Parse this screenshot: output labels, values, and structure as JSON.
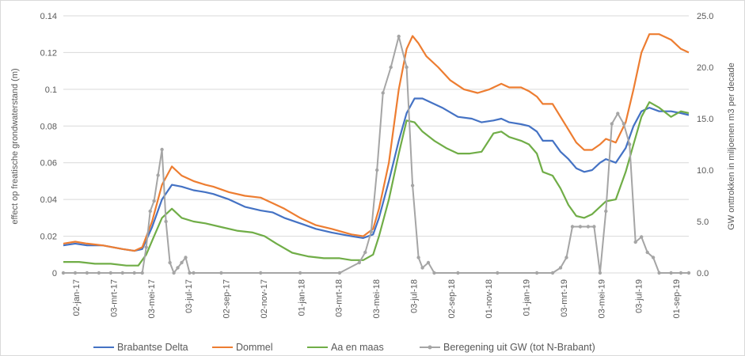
{
  "chart_data": {
    "type": "line",
    "x_tick_labels": [
      "02-jan-17",
      "03-mrt-17",
      "03-mei-17",
      "03-jul-17",
      "02-sep-17",
      "02-nov-17",
      "01-jan-18",
      "03-mrt-18",
      "03-mei-18",
      "03-jul-18",
      "02-sep-18",
      "01-nov-18",
      "01-jan-19",
      "03-mrt-19",
      "03-mei-19",
      "03-jul-19",
      "01-sep-19"
    ],
    "y_left": {
      "label": "effect op freatische grondwaterstand (m)",
      "range": [
        0,
        0.14
      ],
      "ticks": [
        "0",
        "0.02",
        "0.04",
        "0.06",
        "0.08",
        "0.1",
        "0.12",
        "0.14"
      ]
    },
    "y_right": {
      "label": "GW onttrokken in miljoenen m3 per decade",
      "range": [
        0,
        25
      ],
      "ticks": [
        "0.0",
        "5.0",
        "10.0",
        "15.0",
        "20.0",
        "25.0"
      ]
    },
    "grid": "horizontal",
    "legend_position": "bottom",
    "series": [
      {
        "name": "Brabantse Delta",
        "color": "#4472c4",
        "axis": "left",
        "points": [
          [
            0,
            0.015
          ],
          [
            6,
            0.016
          ],
          [
            12,
            0.015
          ],
          [
            20,
            0.015
          ],
          [
            30,
            0.013
          ],
          [
            36,
            0.012
          ],
          [
            40,
            0.013
          ],
          [
            45,
            0.025
          ],
          [
            50,
            0.04
          ],
          [
            55,
            0.048
          ],
          [
            60,
            0.047
          ],
          [
            66,
            0.045
          ],
          [
            72,
            0.044
          ],
          [
            76,
            0.043
          ],
          [
            84,
            0.04
          ],
          [
            92,
            0.036
          ],
          [
            100,
            0.034
          ],
          [
            106,
            0.033
          ],
          [
            112,
            0.03
          ],
          [
            120,
            0.027
          ],
          [
            128,
            0.024
          ],
          [
            136,
            0.022
          ],
          [
            146,
            0.02
          ],
          [
            152,
            0.019
          ],
          [
            157,
            0.021
          ],
          [
            160,
            0.03
          ],
          [
            165,
            0.05
          ],
          [
            170,
            0.072
          ],
          [
            174,
            0.087
          ],
          [
            178,
            0.095
          ],
          [
            182,
            0.095
          ],
          [
            186,
            0.093
          ],
          [
            192,
            0.09
          ],
          [
            200,
            0.085
          ],
          [
            207,
            0.084
          ],
          [
            212,
            0.082
          ],
          [
            218,
            0.083
          ],
          [
            222,
            0.084
          ],
          [
            226,
            0.082
          ],
          [
            232,
            0.081
          ],
          [
            236,
            0.08
          ],
          [
            240,
            0.077
          ],
          [
            243,
            0.072
          ],
          [
            248,
            0.072
          ],
          [
            252,
            0.066
          ],
          [
            256,
            0.062
          ],
          [
            260,
            0.057
          ],
          [
            264,
            0.055
          ],
          [
            268,
            0.056
          ],
          [
            272,
            0.06
          ],
          [
            275,
            0.062
          ],
          [
            280,
            0.06
          ],
          [
            285,
            0.068
          ],
          [
            289,
            0.08
          ],
          [
            293,
            0.088
          ],
          [
            297,
            0.09
          ],
          [
            302,
            0.088
          ],
          [
            308,
            0.088
          ],
          [
            313,
            0.087
          ],
          [
            317,
            0.086
          ]
        ]
      },
      {
        "name": "Dommel",
        "color": "#ed7d31",
        "axis": "left",
        "points": [
          [
            0,
            0.016
          ],
          [
            6,
            0.017
          ],
          [
            12,
            0.016
          ],
          [
            20,
            0.015
          ],
          [
            30,
            0.013
          ],
          [
            36,
            0.012
          ],
          [
            40,
            0.014
          ],
          [
            45,
            0.028
          ],
          [
            50,
            0.048
          ],
          [
            55,
            0.058
          ],
          [
            60,
            0.053
          ],
          [
            66,
            0.05
          ],
          [
            72,
            0.048
          ],
          [
            76,
            0.047
          ],
          [
            84,
            0.044
          ],
          [
            92,
            0.042
          ],
          [
            100,
            0.041
          ],
          [
            106,
            0.038
          ],
          [
            112,
            0.035
          ],
          [
            120,
            0.03
          ],
          [
            128,
            0.026
          ],
          [
            136,
            0.024
          ],
          [
            146,
            0.021
          ],
          [
            152,
            0.02
          ],
          [
            157,
            0.024
          ],
          [
            160,
            0.035
          ],
          [
            165,
            0.06
          ],
          [
            170,
            0.1
          ],
          [
            174,
            0.122
          ],
          [
            177,
            0.129
          ],
          [
            180,
            0.125
          ],
          [
            184,
            0.118
          ],
          [
            190,
            0.112
          ],
          [
            196,
            0.105
          ],
          [
            203,
            0.1
          ],
          [
            210,
            0.098
          ],
          [
            216,
            0.1
          ],
          [
            222,
            0.103
          ],
          [
            226,
            0.101
          ],
          [
            232,
            0.101
          ],
          [
            236,
            0.099
          ],
          [
            240,
            0.096
          ],
          [
            243,
            0.092
          ],
          [
            248,
            0.092
          ],
          [
            252,
            0.085
          ],
          [
            256,
            0.078
          ],
          [
            260,
            0.071
          ],
          [
            264,
            0.067
          ],
          [
            268,
            0.067
          ],
          [
            272,
            0.07
          ],
          [
            275,
            0.073
          ],
          [
            280,
            0.071
          ],
          [
            285,
            0.082
          ],
          [
            289,
            0.1
          ],
          [
            293,
            0.12
          ],
          [
            297,
            0.13
          ],
          [
            302,
            0.13
          ],
          [
            308,
            0.127
          ],
          [
            313,
            0.122
          ],
          [
            317,
            0.12
          ]
        ]
      },
      {
        "name": "Aa en maas",
        "color": "#70ad47",
        "axis": "left",
        "points": [
          [
            0,
            0.006
          ],
          [
            8,
            0.006
          ],
          [
            16,
            0.005
          ],
          [
            24,
            0.005
          ],
          [
            32,
            0.004
          ],
          [
            38,
            0.004
          ],
          [
            42,
            0.01
          ],
          [
            46,
            0.02
          ],
          [
            50,
            0.03
          ],
          [
            55,
            0.035
          ],
          [
            60,
            0.03
          ],
          [
            66,
            0.028
          ],
          [
            72,
            0.027
          ],
          [
            80,
            0.025
          ],
          [
            88,
            0.023
          ],
          [
            96,
            0.022
          ],
          [
            102,
            0.02
          ],
          [
            108,
            0.016
          ],
          [
            116,
            0.011
          ],
          [
            124,
            0.009
          ],
          [
            132,
            0.008
          ],
          [
            140,
            0.008
          ],
          [
            146,
            0.007
          ],
          [
            152,
            0.007
          ],
          [
            157,
            0.01
          ],
          [
            160,
            0.02
          ],
          [
            165,
            0.04
          ],
          [
            170,
            0.065
          ],
          [
            174,
            0.083
          ],
          [
            178,
            0.082
          ],
          [
            182,
            0.077
          ],
          [
            188,
            0.072
          ],
          [
            194,
            0.068
          ],
          [
            200,
            0.065
          ],
          [
            206,
            0.065
          ],
          [
            212,
            0.066
          ],
          [
            218,
            0.076
          ],
          [
            222,
            0.077
          ],
          [
            226,
            0.074
          ],
          [
            232,
            0.072
          ],
          [
            236,
            0.07
          ],
          [
            240,
            0.065
          ],
          [
            243,
            0.055
          ],
          [
            248,
            0.053
          ],
          [
            252,
            0.046
          ],
          [
            256,
            0.037
          ],
          [
            260,
            0.031
          ],
          [
            264,
            0.03
          ],
          [
            268,
            0.032
          ],
          [
            272,
            0.036
          ],
          [
            275,
            0.039
          ],
          [
            280,
            0.04
          ],
          [
            285,
            0.055
          ],
          [
            289,
            0.07
          ],
          [
            293,
            0.085
          ],
          [
            297,
            0.093
          ],
          [
            302,
            0.09
          ],
          [
            308,
            0.085
          ],
          [
            313,
            0.088
          ],
          [
            317,
            0.087
          ]
        ]
      },
      {
        "name": "Beregening uit GW (tot N-Brabant)",
        "color": "#a5a5a5",
        "axis": "right",
        "points": [
          [
            0,
            0
          ],
          [
            6,
            0
          ],
          [
            12,
            0
          ],
          [
            18,
            0
          ],
          [
            24,
            0
          ],
          [
            30,
            0
          ],
          [
            36,
            0
          ],
          [
            40,
            0
          ],
          [
            42,
            2.5
          ],
          [
            44,
            6
          ],
          [
            46,
            7
          ],
          [
            48,
            9.5
          ],
          [
            50,
            12
          ],
          [
            52,
            5
          ],
          [
            54,
            1
          ],
          [
            56,
            0
          ],
          [
            58,
            0.5
          ],
          [
            60,
            1
          ],
          [
            62,
            1.5
          ],
          [
            64,
            0
          ],
          [
            66,
            0
          ],
          [
            80,
            0
          ],
          [
            100,
            0
          ],
          [
            120,
            0
          ],
          [
            140,
            0
          ],
          [
            150,
            1
          ],
          [
            153,
            2
          ],
          [
            156,
            4
          ],
          [
            159,
            10
          ],
          [
            162,
            17.5
          ],
          [
            166,
            20
          ],
          [
            170,
            23
          ],
          [
            174,
            20
          ],
          [
            177,
            8.5
          ],
          [
            180,
            1.5
          ],
          [
            182,
            0.5
          ],
          [
            185,
            1
          ],
          [
            188,
            0
          ],
          [
            200,
            0
          ],
          [
            220,
            0
          ],
          [
            240,
            0
          ],
          [
            248,
            0
          ],
          [
            252,
            0.5
          ],
          [
            255,
            1.5
          ],
          [
            258,
            4.5
          ],
          [
            262,
            4.5
          ],
          [
            266,
            4.5
          ],
          [
            269,
            4.5
          ],
          [
            272,
            0
          ],
          [
            275,
            6
          ],
          [
            278,
            14.5
          ],
          [
            281,
            15.5
          ],
          [
            284,
            14.5
          ],
          [
            287,
            12.5
          ],
          [
            290,
            3
          ],
          [
            293,
            3.5
          ],
          [
            296,
            2
          ],
          [
            299,
            1.5
          ],
          [
            302,
            0
          ],
          [
            308,
            0
          ],
          [
            313,
            0
          ],
          [
            317,
            0
          ]
        ]
      }
    ]
  }
}
